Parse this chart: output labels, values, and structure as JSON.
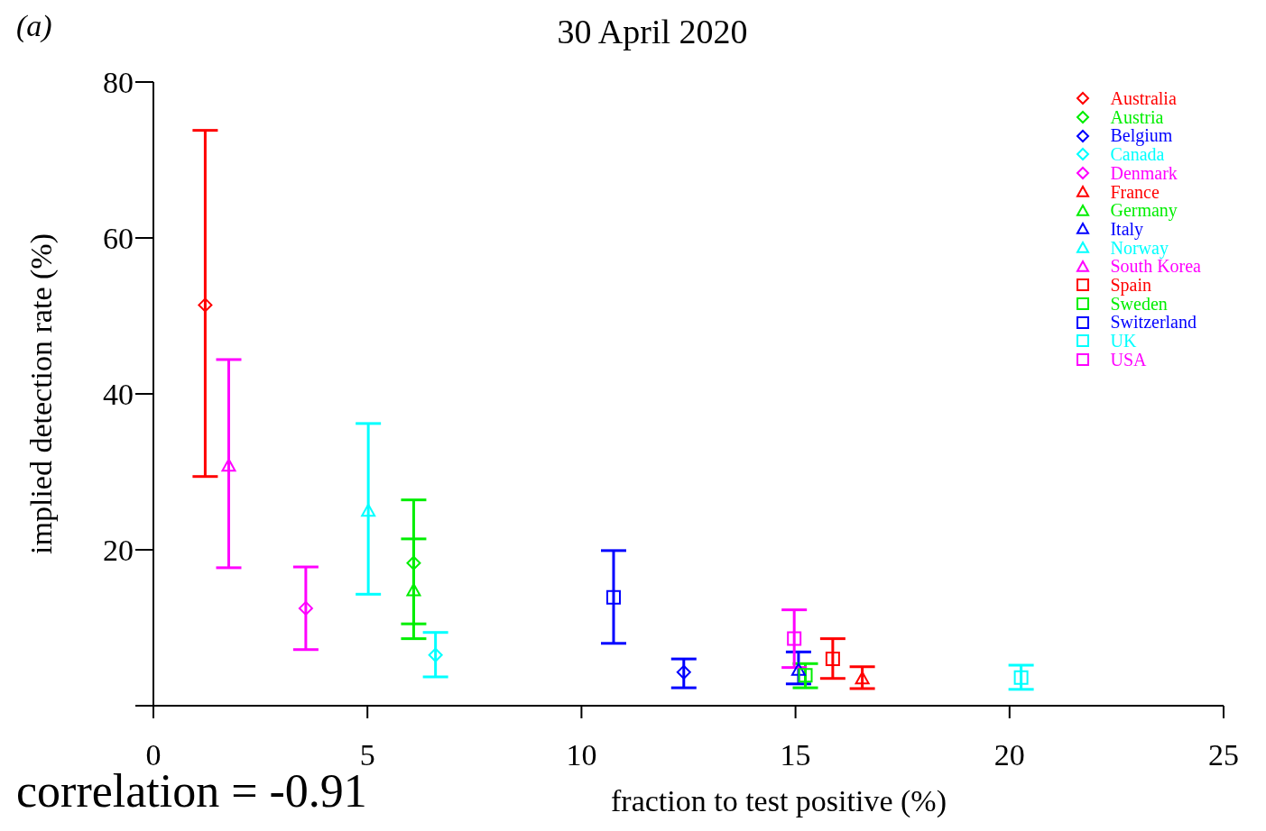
{
  "chart_data": {
    "type": "scatter",
    "title": "30 April 2020",
    "xlabel": "fraction to test positive (%)",
    "ylabel": "implied detection rate (%)",
    "annotations": [
      "(a)",
      "correlation = -0.91"
    ],
    "xlim": [
      0,
      25
    ],
    "xticks": [
      0,
      5,
      10,
      15,
      20,
      25
    ],
    "ylim": [
      0,
      80
    ],
    "yticks": [
      {
        "value": 0,
        "label": null
      },
      20,
      40,
      60,
      80
    ],
    "grid": false,
    "legend": "top right",
    "series": [
      {
        "name": "Australia",
        "color": "#ff0000",
        "marker": "diamond",
        "x": [
          1.21
        ],
        "values": [
          51.4
        ],
        "errors": [
          [
            29.4,
            73.8
          ]
        ]
      },
      {
        "name": "Austria",
        "color": "#00ee00",
        "marker": "diamond",
        "x": [
          6.08
        ],
        "values": [
          18.3
        ],
        "errors": [
          [
            10.5,
            26.4
          ]
        ]
      },
      {
        "name": "Belgium",
        "color": "#0000ff",
        "marker": "diamond",
        "x": [
          12.39
        ],
        "values": [
          4.3
        ],
        "errors": [
          [
            2.3,
            6.0
          ]
        ]
      },
      {
        "name": "Canada",
        "color": "#00ffff",
        "marker": "diamond",
        "x": [
          6.59
        ],
        "values": [
          6.5
        ],
        "errors": [
          [
            3.7,
            9.4
          ]
        ]
      },
      {
        "name": "Denmark",
        "color": "#ff00ff",
        "marker": "diamond",
        "x": [
          3.56
        ],
        "values": [
          12.5
        ],
        "errors": [
          [
            7.2,
            17.8
          ]
        ]
      },
      {
        "name": "France",
        "color": "#ff0000",
        "marker": "triangle",
        "x": [
          16.56
        ],
        "values": [
          3.5
        ],
        "errors": [
          [
            2.2,
            5.0
          ]
        ]
      },
      {
        "name": "Germany",
        "color": "#00ee00",
        "marker": "triangle",
        "x": [
          6.08
        ],
        "values": [
          14.8
        ],
        "errors": [
          [
            8.6,
            21.4
          ]
        ]
      },
      {
        "name": "Italy",
        "color": "#0000ff",
        "marker": "triangle",
        "x": [
          15.07
        ],
        "values": [
          4.6
        ],
        "errors": [
          [
            2.8,
            6.9
          ]
        ]
      },
      {
        "name": "Norway",
        "color": "#00ffff",
        "marker": "triangle",
        "x": [
          5.02
        ],
        "values": [
          25.0
        ],
        "errors": [
          [
            14.3,
            36.2
          ]
        ]
      },
      {
        "name": "South Korea",
        "color": "#ff00ff",
        "marker": "triangle",
        "x": [
          1.76
        ],
        "values": [
          30.8
        ],
        "errors": [
          [
            17.7,
            44.4
          ]
        ]
      },
      {
        "name": "Spain",
        "color": "#ff0000",
        "marker": "square",
        "x": [
          15.87
        ],
        "values": [
          6.0
        ],
        "errors": [
          [
            3.5,
            8.6
          ]
        ]
      },
      {
        "name": "Sweden",
        "color": "#00ee00",
        "marker": "square",
        "x": [
          15.23
        ],
        "values": [
          3.9
        ],
        "errors": [
          [
            2.3,
            5.4
          ]
        ]
      },
      {
        "name": "Switzerland",
        "color": "#0000ff",
        "marker": "square",
        "x": [
          10.75
        ],
        "values": [
          13.9
        ],
        "errors": [
          [
            8.0,
            19.9
          ]
        ]
      },
      {
        "name": "UK",
        "color": "#00ffff",
        "marker": "square",
        "x": [
          20.27
        ],
        "values": [
          3.6
        ],
        "errors": [
          [
            2.1,
            5.2
          ]
        ]
      },
      {
        "name": "USA",
        "color": "#ff00ff",
        "marker": "square",
        "x": [
          14.97
        ],
        "values": [
          8.6
        ],
        "errors": [
          [
            4.9,
            12.3
          ]
        ]
      }
    ]
  }
}
